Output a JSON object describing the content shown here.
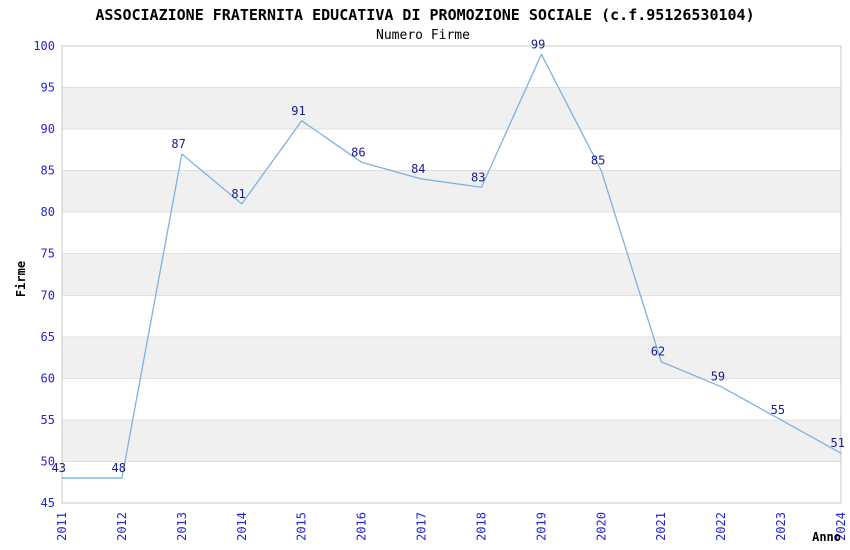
{
  "chart_data": {
    "type": "line",
    "title": "ASSOCIAZIONE FRATERNITA EDUCATIVA DI PROMOZIONE SOCIALE (c.f.95126530104)",
    "subtitle": "Numero Firme",
    "xlabel": "Anno",
    "ylabel": "Firme",
    "categories": [
      "2011",
      "2012",
      "2013",
      "2014",
      "2015",
      "2016",
      "2017",
      "2018",
      "2019",
      "2020",
      "2021",
      "2022",
      "2023",
      "2024"
    ],
    "values": [
      43,
      48,
      87,
      81,
      91,
      86,
      84,
      83,
      99,
      85,
      62,
      59,
      55,
      51
    ],
    "plotted_values": [
      48,
      48,
      87,
      81,
      91,
      86,
      84,
      83,
      99,
      85,
      62,
      59,
      55,
      51
    ],
    "ylim": [
      45,
      100
    ],
    "yticks": [
      45,
      50,
      55,
      60,
      65,
      70,
      75,
      80,
      85,
      90,
      95,
      100
    ],
    "band_upper_values": [
      95,
      85,
      75,
      65,
      55
    ],
    "grid": "horizontal",
    "legend": "none",
    "colors": {
      "line": "#7eb2e4",
      "tick_label": "#2424d9",
      "point_label": "#1a1a8c",
      "band": "#f0f0f0",
      "gridline": "#e0e0e0",
      "border": "#c9c9c9",
      "title": "#222222",
      "subtitle": "#555555",
      "axis_title": "#111111"
    }
  }
}
